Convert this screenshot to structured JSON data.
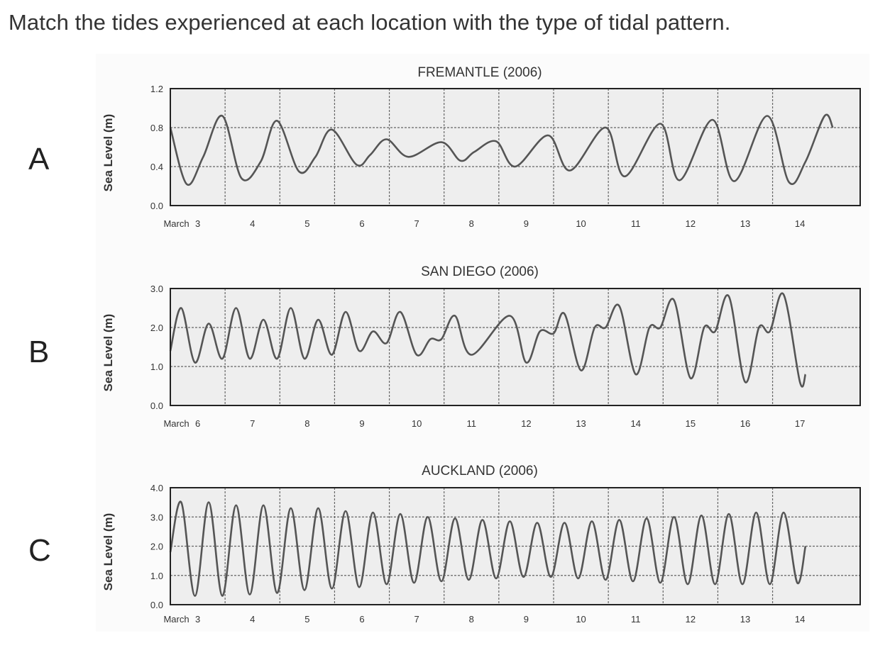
{
  "question": "Match the tides experienced at each location with the type of tidal pattern.",
  "colors": {
    "plot_bg": "#eeeeee",
    "line": "#555555",
    "grid": "#666666",
    "frame": "#222222"
  },
  "chart_data": [
    {
      "type": "line",
      "panel_label": "A",
      "title": "FREMANTLE (2006)",
      "ylabel": "Sea Level (m)",
      "ylim": [
        0,
        1.2
      ],
      "yticks": [
        "0.0",
        "0.4",
        "0.8",
        "1.2"
      ],
      "grid": true,
      "x_first_label": "March",
      "x_ticks": [
        "3",
        "4",
        "5",
        "6",
        "7",
        "8",
        "9",
        "10",
        "11",
        "12",
        "13",
        "14"
      ],
      "x_start": 2.0,
      "x_end": 14.6,
      "series": [
        {
          "values": [
            [
              2.0,
              0.8
            ],
            [
              2.3,
              0.22
            ],
            [
              2.6,
              0.5
            ],
            [
              2.95,
              0.92
            ],
            [
              3.3,
              0.28
            ],
            [
              3.65,
              0.45
            ],
            [
              3.95,
              0.87
            ],
            [
              4.35,
              0.35
            ],
            [
              4.65,
              0.5
            ],
            [
              4.95,
              0.78
            ],
            [
              5.4,
              0.42
            ],
            [
              5.65,
              0.52
            ],
            [
              5.95,
              0.68
            ],
            [
              6.35,
              0.5
            ],
            [
              6.95,
              0.65
            ],
            [
              7.3,
              0.46
            ],
            [
              7.55,
              0.55
            ],
            [
              7.95,
              0.66
            ],
            [
              8.3,
              0.4
            ],
            [
              8.9,
              0.72
            ],
            [
              9.3,
              0.36
            ],
            [
              9.95,
              0.8
            ],
            [
              10.3,
              0.3
            ],
            [
              10.95,
              0.84
            ],
            [
              11.3,
              0.26
            ],
            [
              11.9,
              0.88
            ],
            [
              12.3,
              0.25
            ],
            [
              12.9,
              0.92
            ],
            [
              13.3,
              0.24
            ],
            [
              13.6,
              0.45
            ],
            [
              13.95,
              0.92
            ],
            [
              14.1,
              0.8
            ]
          ]
        }
      ]
    },
    {
      "type": "line",
      "panel_label": "B",
      "title": "SAN DIEGO (2006)",
      "ylabel": "Sea Level (m)",
      "ylim": [
        0,
        3.0
      ],
      "yticks": [
        "0.0",
        "1.0",
        "2.0",
        "3.0"
      ],
      "grid": true,
      "x_first_label": "March",
      "x_ticks": [
        "6",
        "7",
        "8",
        "9",
        "10",
        "11",
        "12",
        "13",
        "14",
        "15",
        "16",
        "17"
      ],
      "x_start": 5.0,
      "x_end": 17.6,
      "series": [
        {
          "values": [
            [
              5.0,
              1.4
            ],
            [
              5.2,
              2.5
            ],
            [
              5.45,
              1.1
            ],
            [
              5.7,
              2.1
            ],
            [
              5.95,
              1.2
            ],
            [
              6.2,
              2.5
            ],
            [
              6.45,
              1.2
            ],
            [
              6.7,
              2.2
            ],
            [
              6.95,
              1.2
            ],
            [
              7.2,
              2.5
            ],
            [
              7.45,
              1.2
            ],
            [
              7.7,
              2.2
            ],
            [
              7.95,
              1.3
            ],
            [
              8.2,
              2.4
            ],
            [
              8.45,
              1.4
            ],
            [
              8.7,
              1.9
            ],
            [
              8.95,
              1.6
            ],
            [
              9.2,
              2.4
            ],
            [
              9.5,
              1.3
            ],
            [
              9.75,
              1.7
            ],
            [
              9.95,
              1.7
            ],
            [
              10.2,
              2.3
            ],
            [
              10.5,
              1.3
            ],
            [
              11.2,
              2.3
            ],
            [
              11.5,
              1.1
            ],
            [
              11.75,
              1.9
            ],
            [
              12.0,
              1.85
            ],
            [
              12.2,
              2.35
            ],
            [
              12.5,
              0.9
            ],
            [
              12.75,
              2.0
            ],
            [
              12.95,
              2.0
            ],
            [
              13.2,
              2.55
            ],
            [
              13.5,
              0.8
            ],
            [
              13.75,
              2.0
            ],
            [
              13.95,
              2.0
            ],
            [
              14.2,
              2.7
            ],
            [
              14.5,
              0.7
            ],
            [
              14.75,
              2.0
            ],
            [
              14.95,
              1.9
            ],
            [
              15.2,
              2.8
            ],
            [
              15.5,
              0.6
            ],
            [
              15.75,
              2.0
            ],
            [
              15.95,
              1.9
            ],
            [
              16.2,
              2.85
            ],
            [
              16.5,
              0.6
            ],
            [
              16.6,
              0.8
            ]
          ]
        }
      ]
    },
    {
      "type": "line",
      "panel_label": "C",
      "title": "AUCKLAND (2006)",
      "ylabel": "Sea Level (m)",
      "ylim": [
        0,
        4.0
      ],
      "yticks": [
        "0.0",
        "1.0",
        "2.0",
        "3.0",
        "4.0"
      ],
      "grid": true,
      "x_first_label": "March",
      "x_ticks": [
        "3",
        "4",
        "5",
        "6",
        "7",
        "8",
        "9",
        "10",
        "11",
        "12",
        "13",
        "14"
      ],
      "x_start": 2.0,
      "x_end": 14.6,
      "series": [
        {
          "values": [
            [
              2.0,
              1.8
            ],
            [
              2.2,
              3.5
            ],
            [
              2.45,
              0.3
            ],
            [
              2.7,
              3.5
            ],
            [
              2.95,
              0.3
            ],
            [
              3.2,
              3.4
            ],
            [
              3.45,
              0.35
            ],
            [
              3.7,
              3.4
            ],
            [
              3.95,
              0.4
            ],
            [
              4.2,
              3.3
            ],
            [
              4.45,
              0.5
            ],
            [
              4.7,
              3.3
            ],
            [
              4.95,
              0.55
            ],
            [
              5.2,
              3.2
            ],
            [
              5.45,
              0.6
            ],
            [
              5.7,
              3.15
            ],
            [
              5.95,
              0.7
            ],
            [
              6.2,
              3.1
            ],
            [
              6.45,
              0.75
            ],
            [
              6.7,
              3.0
            ],
            [
              6.95,
              0.8
            ],
            [
              7.2,
              2.95
            ],
            [
              7.45,
              0.85
            ],
            [
              7.7,
              2.9
            ],
            [
              7.95,
              0.9
            ],
            [
              8.2,
              2.85
            ],
            [
              8.45,
              0.95
            ],
            [
              8.7,
              2.8
            ],
            [
              8.95,
              0.95
            ],
            [
              9.2,
              2.8
            ],
            [
              9.45,
              0.9
            ],
            [
              9.7,
              2.85
            ],
            [
              9.95,
              0.85
            ],
            [
              10.2,
              2.9
            ],
            [
              10.45,
              0.8
            ],
            [
              10.7,
              2.95
            ],
            [
              10.95,
              0.75
            ],
            [
              11.2,
              3.0
            ],
            [
              11.45,
              0.7
            ],
            [
              11.7,
              3.05
            ],
            [
              11.95,
              0.7
            ],
            [
              12.2,
              3.1
            ],
            [
              12.45,
              0.7
            ],
            [
              12.7,
              3.15
            ],
            [
              12.95,
              0.7
            ],
            [
              13.2,
              3.15
            ],
            [
              13.45,
              0.75
            ],
            [
              13.6,
              2.0
            ]
          ]
        }
      ]
    }
  ]
}
